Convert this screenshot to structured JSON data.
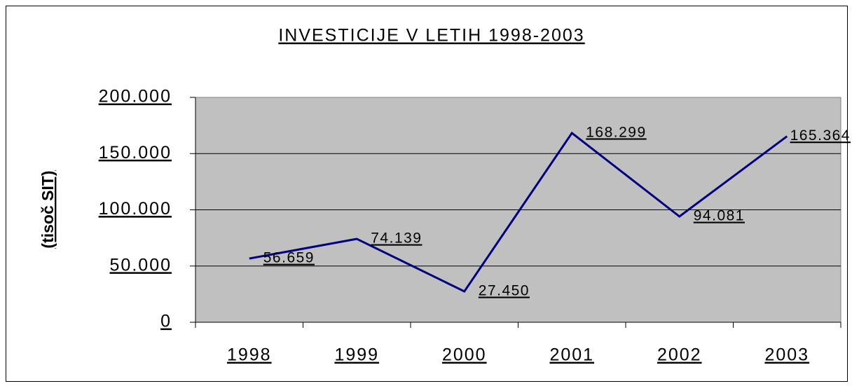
{
  "chart_data": {
    "type": "line",
    "title": "INVESTICIJE V LETIH 1998-2003",
    "y_label": "(tisoč SIT)",
    "categories": [
      "1998",
      "1999",
      "2000",
      "2001",
      "2002",
      "2003"
    ],
    "values": [
      56659,
      74139,
      27450,
      168299,
      94081,
      165364
    ],
    "value_labels": [
      "56.659",
      "74.139",
      "27.450",
      "168.299",
      "94.081",
      "165.364"
    ],
    "color": "#000080",
    "ylim": [
      0,
      200000
    ],
    "yticks": [
      0,
      {
        "value": 50000,
        "label": "50.000"
      },
      {
        "value": 100000,
        "label": "100.000"
      },
      {
        "value": 150000,
        "label": "150.000"
      },
      {
        "value": 200000,
        "label": "200.000"
      }
    ],
    "grid": true
  }
}
